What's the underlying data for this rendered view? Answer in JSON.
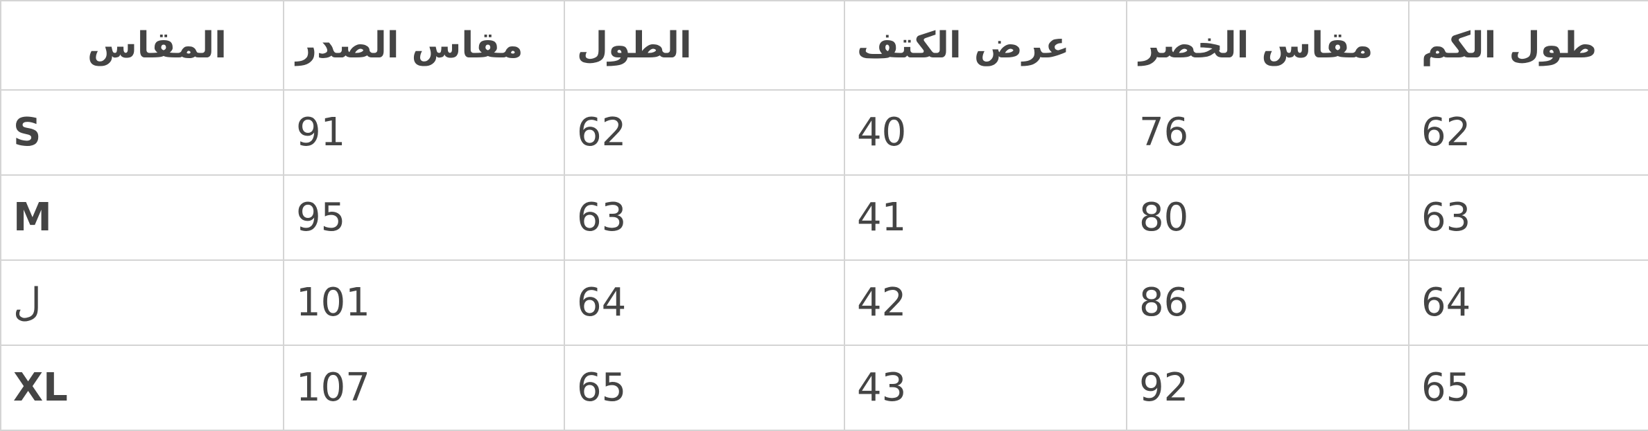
{
  "table": {
    "headers": [
      "المقاس",
      "مقاس الصدر",
      "الطول",
      "عرض الكتف",
      "مقاس الخصر",
      "طول الكم"
    ],
    "rows": [
      [
        "S",
        "91",
        "62",
        "40",
        "76",
        "62"
      ],
      [
        "M",
        "95",
        "63",
        "41",
        "80",
        "63"
      ],
      [
        "ل",
        "101",
        "64",
        "42",
        "86",
        "64"
      ],
      [
        "XL",
        "107",
        "65",
        "43",
        "92",
        "65"
      ]
    ]
  },
  "colors": {
    "text": "#444444",
    "border": "#d4d4d4",
    "background": "#ffffff"
  }
}
